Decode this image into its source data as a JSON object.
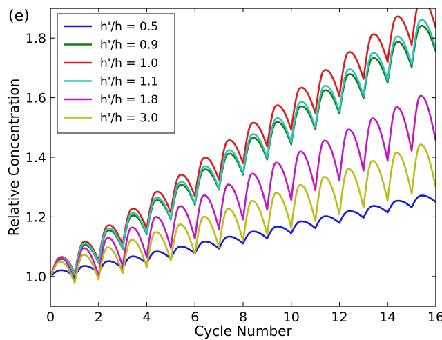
{
  "panel_label": "(e)",
  "chart_data": {
    "type": "line",
    "xlabel": "Cycle Number",
    "ylabel": "Relative Concentration",
    "xlim": [
      0,
      16
    ],
    "ylim": [
      0.9,
      1.9
    ],
    "xticks": [
      "0",
      "2",
      "4",
      "6",
      "8",
      "10",
      "12",
      "14",
      "16"
    ],
    "yticks": [
      "1.0",
      "1.2",
      "1.4",
      "1.6",
      "1.8"
    ],
    "grid": false,
    "legend_position": "top-left",
    "series": [
      {
        "name": "h'/h = 0.5",
        "color": "#1a1ad8",
        "base_end": 1.27,
        "amp_start": 0.015,
        "amp_end": 0.012,
        "min_drop": 0.02
      },
      {
        "name": "h'/h = 0.9",
        "color": "#137d13",
        "base_end": 1.8,
        "amp_start": 0.04,
        "amp_end": 0.075,
        "min_drop": 0.045
      },
      {
        "name": "h'/h = 1.0",
        "color": "#e01b1b",
        "base_end": 1.88,
        "amp_start": 0.045,
        "amp_end": 0.09,
        "min_drop": 0.045
      },
      {
        "name": "h'/h = 1.1",
        "color": "#2ec4b8",
        "base_end": 1.81,
        "amp_start": 0.045,
        "amp_end": 0.085,
        "min_drop": 0.045
      },
      {
        "name": "h'/h = 1.8",
        "color": "#c219c2",
        "base_end": 1.51,
        "amp_start": 0.05,
        "amp_end": 0.12,
        "min_drop": 0.055
      },
      {
        "name": "h'/h = 3.0",
        "color": "#bdbd1a",
        "base_end": 1.35,
        "amp_start": 0.04,
        "amp_end": 0.11,
        "min_drop": 0.05
      }
    ]
  }
}
